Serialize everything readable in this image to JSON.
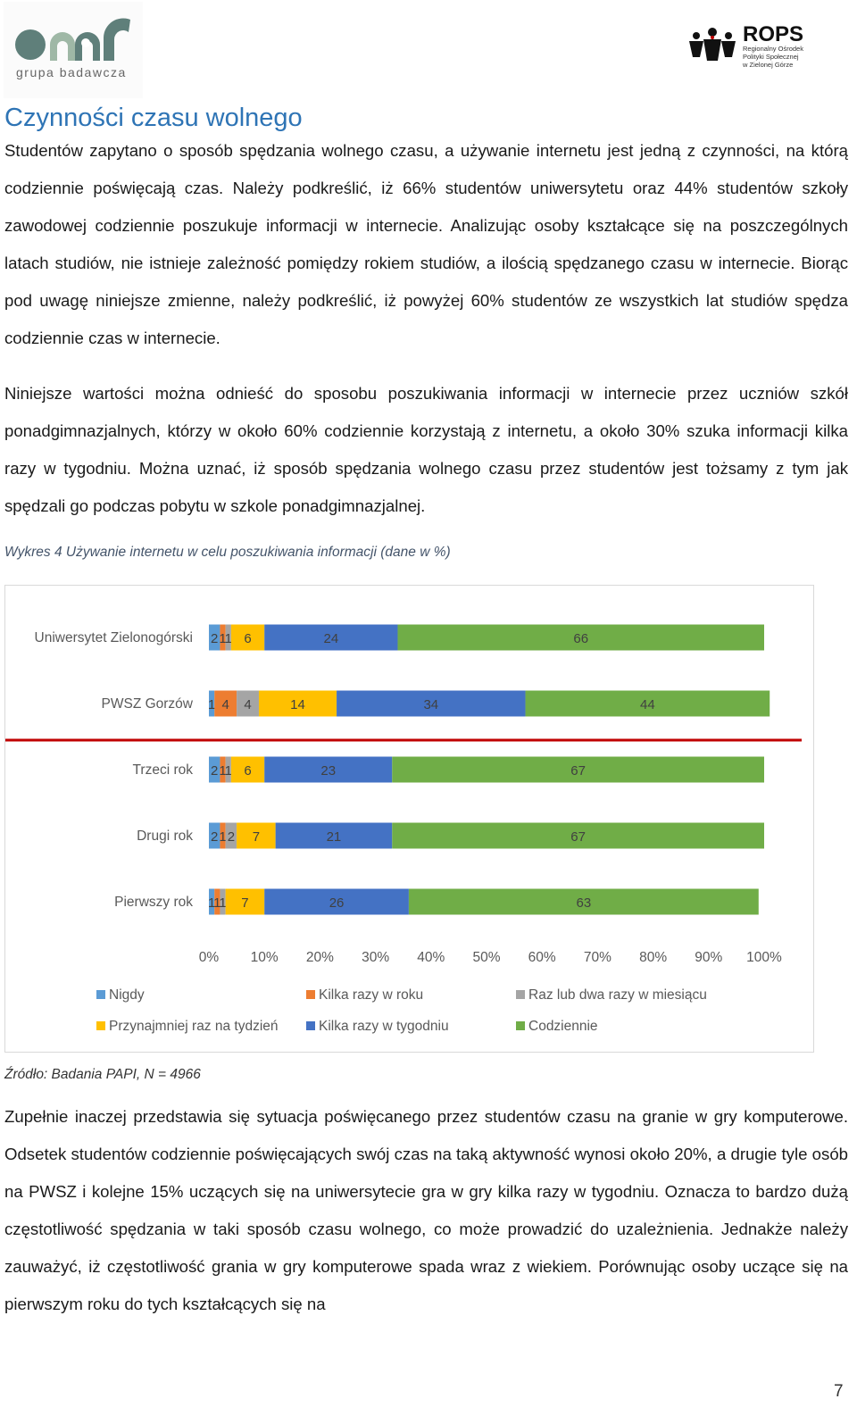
{
  "header": {
    "left_logo_text": "grupa badawcza",
    "right_logo_title": "ROPS",
    "right_logo_subtitle_lines": [
      "Regionalny Ośrodek",
      "Polityki Społecznej",
      "w Zielonej Górze"
    ]
  },
  "section_title": "Czynności czasu wolnego",
  "paragraph1": "Studentów zapytano o sposób spędzania wolnego czasu, a używanie internetu jest jedną z czynności, na którą codziennie poświęcają czas. Należy podkreślić, iż 66% studentów uniwersytetu oraz 44% studentów szkoły zawodowej codziennie poszukuje informacji w internecie. Analizując osoby kształcące się na poszczególnych latach studiów, nie istnieje zależność pomiędzy rokiem studiów, a ilością spędzanego czasu w internecie. Biorąc pod uwagę niniejsze zmienne, należy podkreślić, iż powyżej 60% studentów ze wszystkich lat studiów spędza codziennie czas w internecie.",
  "paragraph2": "Niniejsze wartości można odnieść do sposobu poszukiwania informacji w internecie przez uczniów szkół ponadgimnazjalnych, którzy w około 60% codziennie korzystają z internetu, a około 30% szuka informacji kilka razy w tygodniu. Można uznać, iż sposób spędzania wolnego czasu przez studentów jest tożsamy z tym jak spędzali go podczas pobytu w szkole ponadgimnazjalnej.",
  "chart_caption": "Wykres 4 Używanie internetu w celu poszukiwania informacji (dane w %)",
  "chart_data": {
    "type": "bar",
    "orientation": "horizontal",
    "stacked": true,
    "categories": [
      "Uniwersytet Zielonogórski",
      "PWSZ Gorzów",
      "Trzeci rok",
      "Drugi rok",
      "Pierwszy rok"
    ],
    "series": [
      {
        "name": "Nigdy",
        "color": "#5b9bd5",
        "values": [
          2,
          1,
          2,
          2,
          1
        ]
      },
      {
        "name": "Kilka razy w roku",
        "color": "#ed7d31",
        "values": [
          1,
          4,
          1,
          1,
          1
        ]
      },
      {
        "name": "Raz lub dwa razy w miesiącu",
        "color": "#a5a5a5",
        "values": [
          1,
          4,
          1,
          2,
          1
        ]
      },
      {
        "name": "Przynajmniej raz na tydzień",
        "color": "#ffc000",
        "values": [
          6,
          14,
          6,
          7,
          7
        ]
      },
      {
        "name": "Kilka razy w tygodniu",
        "color": "#4472c4",
        "values": [
          24,
          34,
          23,
          21,
          26
        ]
      },
      {
        "name": "Codziennie",
        "color": "#70ad47",
        "values": [
          66,
          44,
          67,
          67,
          63
        ]
      }
    ],
    "xlim": [
      0,
      100
    ],
    "x_ticks": [
      "0%",
      "10%",
      "20%",
      "30%",
      "40%",
      "50%",
      "60%",
      "70%",
      "80%",
      "90%",
      "100%"
    ],
    "legend_position": "bottom",
    "separator_color": "#c00000"
  },
  "chart_source": "Źródło: Badania PAPI, N = 4966",
  "paragraph3": "Zupełnie inaczej przedstawia się sytuacja poświęcanego przez studentów czasu na granie w gry komputerowe. Odsetek studentów codziennie poświęcających swój czas na taką aktywność wynosi około 20%, a drugie tyle osób na PWSZ i kolejne 15% uczących się na uniwersytecie gra w gry kilka razy w tygodniu. Oznacza to bardzo dużą częstotliwość spędzania w taki sposób czasu wolnego, co może prowadzić do uzależnienia. Jednakże należy zauważyć, iż częstotliwość grania w gry komputerowe spada wraz z wiekiem. Porównując osoby uczące się na pierwszym roku do tych kształcących się na",
  "page_number": "7"
}
